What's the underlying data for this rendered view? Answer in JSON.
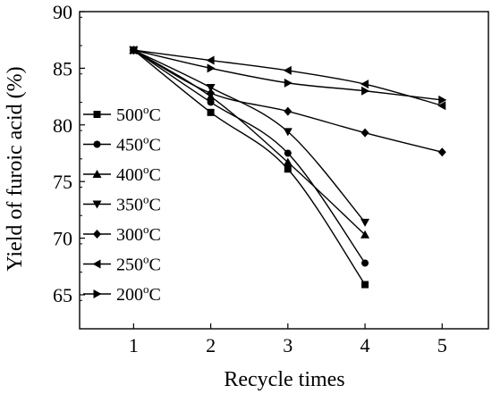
{
  "chart_data": {
    "type": "line",
    "title": "",
    "xlabel": "Recycle times",
    "ylabel": "Yield of furoic acid (%)",
    "xlim": [
      0.3,
      5.6
    ],
    "ylim": [
      62,
      90
    ],
    "xticks": [
      1,
      2,
      3,
      4,
      5
    ],
    "yticks": [
      65,
      70,
      75,
      80,
      85,
      90
    ],
    "xtick_labels": [
      "1",
      "2",
      "3",
      "4",
      "5"
    ],
    "ytick_labels": [
      "65",
      "70",
      "75",
      "80",
      "85",
      "90"
    ],
    "grid": false,
    "legend_position": "left",
    "series": [
      {
        "name": "500°C",
        "label_main": "500",
        "label_sup": "o",
        "label_unit": "C",
        "marker": "square",
        "x": [
          1,
          2,
          3,
          4
        ],
        "values": [
          86.6,
          81.1,
          76.1,
          65.9
        ]
      },
      {
        "name": "450°C",
        "label_main": "450",
        "label_sup": "o",
        "label_unit": "C",
        "marker": "circle",
        "x": [
          1,
          2,
          3,
          4
        ],
        "values": [
          86.6,
          82.0,
          77.5,
          67.8
        ]
      },
      {
        "name": "400°C",
        "label_main": "400",
        "label_sup": "o",
        "label_unit": "C",
        "marker": "triangle-up",
        "x": [
          1,
          2,
          3,
          4
        ],
        "values": [
          86.6,
          82.5,
          76.7,
          70.3
        ]
      },
      {
        "name": "350°C",
        "label_main": "350",
        "label_sup": "o",
        "label_unit": "C",
        "marker": "triangle-down",
        "x": [
          1,
          2,
          3,
          4
        ],
        "values": [
          86.6,
          83.3,
          79.4,
          71.4
        ]
      },
      {
        "name": "300°C",
        "label_main": "300",
        "label_sup": "o",
        "label_unit": "C",
        "marker": "diamond",
        "x": [
          1,
          2,
          3,
          4,
          5
        ],
        "values": [
          86.6,
          82.8,
          81.2,
          79.3,
          77.6
        ]
      },
      {
        "name": "250°C",
        "label_main": "250",
        "label_sup": "o",
        "label_unit": "C",
        "marker": "triangle-left",
        "x": [
          1,
          2,
          3,
          4,
          5
        ],
        "values": [
          86.6,
          85.7,
          84.8,
          83.6,
          81.7
        ]
      },
      {
        "name": "200°C",
        "label_main": "200",
        "label_sup": "o",
        "label_unit": "C",
        "marker": "triangle-right",
        "x": [
          1,
          2,
          3,
          4,
          5
        ],
        "values": [
          86.6,
          85.0,
          83.7,
          83.0,
          82.2
        ]
      }
    ]
  }
}
